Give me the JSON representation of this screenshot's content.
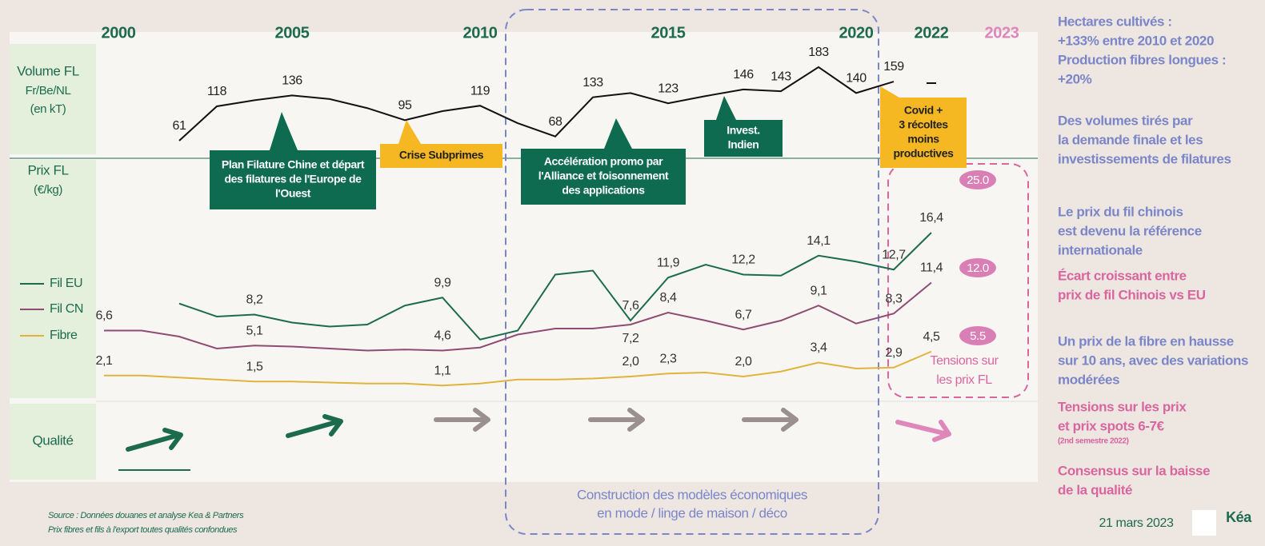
{
  "chart_data": {
    "type": "line",
    "x": [
      2000,
      2001,
      2002,
      2003,
      2004,
      2005,
      2006,
      2007,
      2008,
      2009,
      2010,
      2011,
      2012,
      2013,
      2014,
      2015,
      2016,
      2017,
      2018,
      2019,
      2020,
      2021,
      2022
    ],
    "xlim": [
      2000,
      2022
    ],
    "xticks": [
      2000,
      2005,
      2010,
      2015,
      2020,
      2022
    ],
    "forecast_year": "2023",
    "ylim": [
      0,
      24
    ],
    "y2lim": [
      0,
      220
    ],
    "series": [
      {
        "name": "Volume FL",
        "axis": "y2",
        "color": "#111111",
        "values": [
          null,
          null,
          61,
          118,
          128,
          136,
          130,
          115,
          95,
          110,
          119,
          90,
          68,
          133,
          140,
          123,
          135,
          146,
          143,
          183,
          140,
          159,
          null
        ],
        "value_labels": [
          null,
          null,
          "61",
          "118",
          null,
          "136",
          null,
          null,
          "95",
          null,
          "119",
          null,
          "68",
          "133",
          null,
          "123",
          null,
          "146",
          "143",
          "183",
          "140",
          "159",
          null
        ]
      },
      {
        "name": "Fil EU",
        "color": "#1d6b4f",
        "values": [
          null,
          null,
          9.3,
          8.0,
          8.2,
          7.4,
          7.0,
          7.2,
          9.1,
          9.9,
          5.7,
          6.6,
          12.2,
          12.6,
          7.6,
          11.9,
          13.2,
          12.2,
          12.1,
          14.1,
          13.5,
          12.7,
          16.4
        ],
        "value_labels": [
          null,
          null,
          null,
          null,
          "8,2",
          null,
          null,
          null,
          null,
          "9,9",
          null,
          null,
          null,
          null,
          "7,6",
          "11,9",
          null,
          "12,2",
          null,
          "14,1",
          null,
          "12,7",
          "16,4"
        ],
        "forecast": 25,
        "forecast_label": "25.0"
      },
      {
        "name": "Fil CN",
        "color": "#8e4c72",
        "values": [
          6.6,
          6.6,
          6.0,
          4.8,
          5.1,
          5.0,
          4.8,
          4.6,
          4.7,
          4.6,
          4.9,
          6.2,
          6.8,
          6.8,
          7.2,
          8.4,
          7.6,
          6.7,
          7.6,
          9.1,
          7.3,
          8.3,
          11.4
        ],
        "value_labels": [
          "6,6",
          null,
          null,
          null,
          "5,1",
          null,
          null,
          null,
          null,
          "4,6",
          null,
          null,
          null,
          null,
          "7,2",
          "8,4",
          null,
          "6,7",
          null,
          "9,1",
          null,
          "8,3",
          "11,4"
        ],
        "forecast": 12,
        "forecast_label": "12.0"
      },
      {
        "name": "Fibre",
        "color": "#e0b43a",
        "values": [
          2.1,
          2.1,
          1.9,
          1.7,
          1.5,
          1.5,
          1.4,
          1.3,
          1.3,
          1.1,
          1.3,
          1.7,
          1.7,
          1.8,
          2.0,
          2.3,
          2.4,
          2.0,
          2.5,
          3.4,
          2.8,
          2.9,
          4.5
        ],
        "value_labels": [
          "2,1",
          null,
          null,
          null,
          "1,5",
          null,
          null,
          null,
          null,
          "1,1",
          null,
          null,
          null,
          null,
          "2,0",
          "2,3",
          null,
          "2,0",
          null,
          "3,4",
          null,
          "2,9",
          "4,5"
        ],
        "forecast": 5.5
      }
    ]
  },
  "row_labels": {
    "volume_unit": [
      "Fr/Be/NL",
      "(en kT)"
    ],
    "price": [
      "Prix FL",
      "(€/kg)"
    ],
    "quality": "Qualité"
  },
  "annotations": [
    {
      "lines": [
        "Plan Filature Chine et départ",
        "des filatures de l'Europe de",
        "l'Ouest"
      ]
    },
    {
      "lines": [
        "Crise Subprimes"
      ]
    },
    {
      "lines": [
        "Accélération promo par",
        "l'Alliance et foisonnement",
        "des applications"
      ]
    },
    {
      "lines": [
        "Invest.",
        "Indien"
      ]
    },
    {
      "lines": [
        "Covid +",
        "3 récoltes",
        "moins",
        "productives"
      ]
    }
  ],
  "tension_note": [
    "Tensions sur",
    "les prix FL"
  ],
  "period_note": [
    "Construction des modèles économiques",
    "en mode / linge de maison / déco"
  ],
  "side_notes": [
    {
      "color": "#7b86c9",
      "lines": [
        "Hectares cultivés :",
        " +133% entre 2010 et 2020",
        "Production fibres longues :",
        "+20%"
      ]
    },
    {
      "color": "#7b86c9",
      "lines": [
        "Des volumes tirés par",
        "la demande finale et les",
        "investissements de filatures"
      ]
    },
    {
      "color": "#7b86c9",
      "lines": [
        "Le prix du fil chinois",
        "est devenu la référence",
        "internationale"
      ]
    },
    {
      "color": "#d9669e",
      "lines": [
        "Écart croissant entre",
        "prix de fil Chinois vs EU"
      ]
    },
    {
      "color": "#7b86c9",
      "lines": [
        "Un prix de la fibre en hausse",
        "sur 10 ans, avec des variations",
        "modérées"
      ]
    },
    {
      "color": "#d9669e",
      "lines": [
        "Tensions sur les prix",
        "et prix spots 6-7€"
      ],
      "footnote": "(2nd semestre 2022)"
    },
    {
      "color": "#d9669e",
      "lines": [
        "Consensus sur la baisse",
        "de la qualité"
      ]
    }
  ],
  "source": [
    "Source : Données douanes et analyse Kea & Partners",
    "Prix fibres et fils à l'export toutes qualités confondues"
  ],
  "date": "21 mars 2023",
  "logo": "Kéa"
}
